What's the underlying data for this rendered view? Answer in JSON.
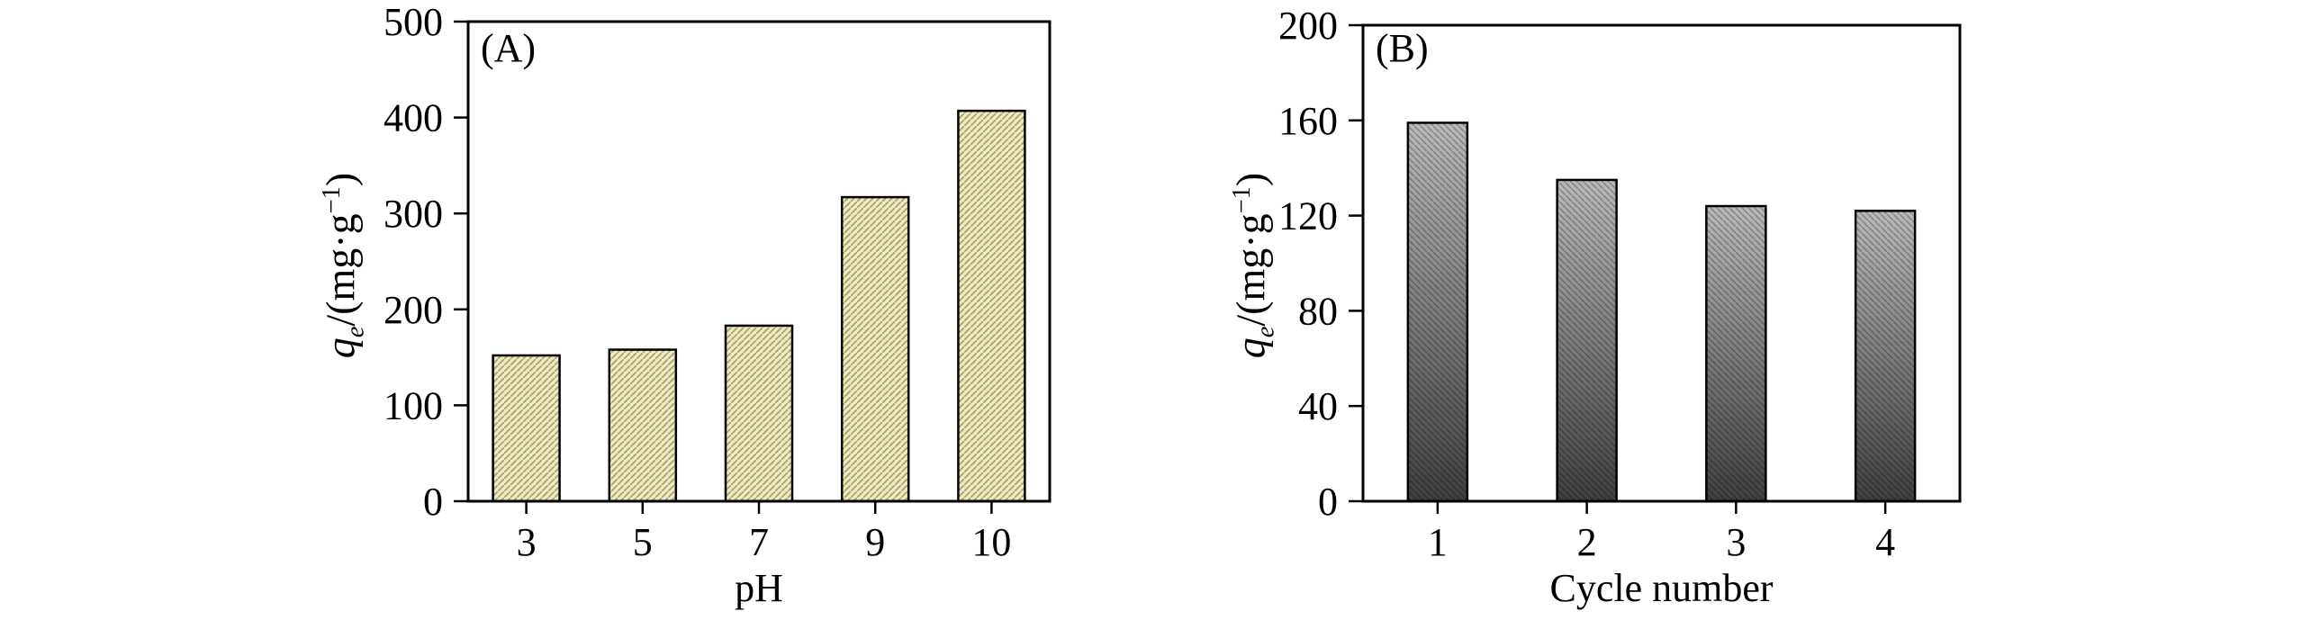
{
  "figure": {
    "background": "#ffffff",
    "text_color": "#000000"
  },
  "charts": [
    {
      "panel_label": "(A)",
      "chart_data": {
        "type": "bar",
        "categories": [
          "3",
          "5",
          "7",
          "9",
          "10"
        ],
        "values": [
          152,
          158,
          183,
          317,
          407
        ],
        "title": "",
        "xlabel": "pH",
        "ylabel": {
          "var": "q",
          "sub": "e",
          "mid": "/(mg·g",
          "sup": "−1",
          "end": ")"
        },
        "ylim": [
          0,
          500
        ],
        "yticks": [
          0,
          100,
          200,
          300,
          400,
          500
        ],
        "grid": false,
        "legend": "none",
        "bar_style": {
          "fill": "#ede9c4",
          "hatch_color": "#a9a268",
          "hatch": "diagonal-forward",
          "outline": "#000000"
        }
      }
    },
    {
      "panel_label": "(B)",
      "chart_data": {
        "type": "bar",
        "categories": [
          "1",
          "2",
          "3",
          "4"
        ],
        "values": [
          159,
          135,
          124,
          122
        ],
        "title": "",
        "xlabel": "Cycle number",
        "ylabel": {
          "var": "q",
          "sub": "e",
          "mid": "/(mg·g",
          "sup": "−1",
          "end": ")"
        },
        "ylim": [
          0,
          200
        ],
        "yticks": [
          0,
          40,
          80,
          120,
          160,
          200
        ],
        "grid": false,
        "legend": "none",
        "bar_style": {
          "gradient_top": "#b9b9b9",
          "gradient_bottom": "#3f3f3f",
          "hatch_color": "rgba(0,0,0,0.28)",
          "hatch": "diagonal-back",
          "outline": "#000000"
        }
      }
    }
  ]
}
